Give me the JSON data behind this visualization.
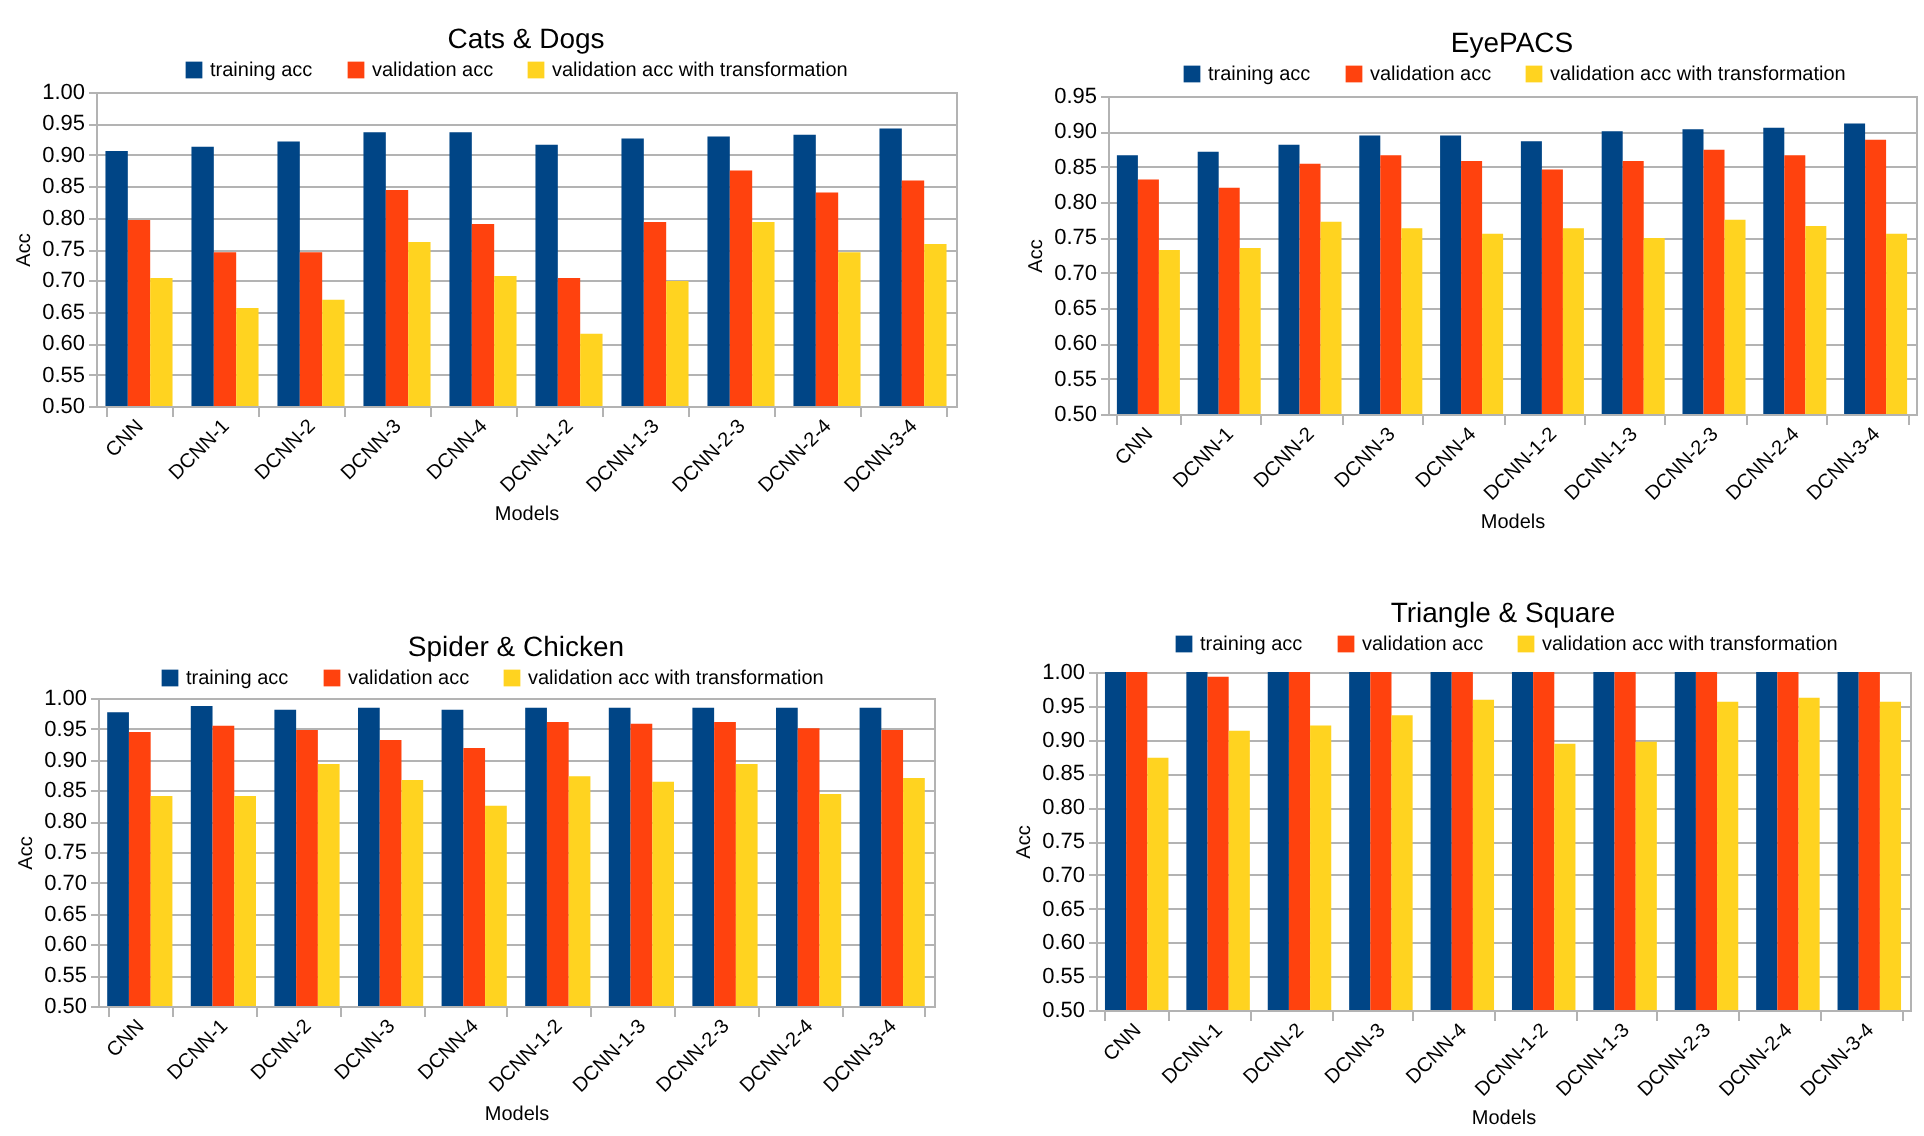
{
  "chart_data": [
    {
      "type": "bar",
      "title": "Cats & Dogs",
      "xlabel": "Models",
      "ylabel": "Acc",
      "categories": [
        "CNN",
        "DCNN-1",
        "DCNN-2",
        "DCNN-3",
        "DCNN-4",
        "DCNN-1-2",
        "DCNN-1-3",
        "DCNN-2-3",
        "DCNN-2-4",
        "DCNN-3-4"
      ],
      "series": [
        {
          "name": "training acc",
          "color": "#004586",
          "values": [
            0.906,
            0.913,
            0.921,
            0.936,
            0.936,
            0.916,
            0.926,
            0.929,
            0.932,
            0.942
          ]
        },
        {
          "name": "validation acc",
          "color": "#ff420e",
          "values": [
            0.796,
            0.745,
            0.745,
            0.844,
            0.79,
            0.704,
            0.793,
            0.875,
            0.84,
            0.859
          ]
        },
        {
          "name": "validation acc with transformation",
          "color": "#ffd320",
          "values": [
            0.704,
            0.656,
            0.669,
            0.761,
            0.707,
            0.615,
            0.699,
            0.793,
            0.745,
            0.758
          ]
        }
      ],
      "ylim": [
        0.5,
        1.0
      ],
      "yticks": [
        {
          "value": 0.5,
          "label": "0.50"
        },
        0.55,
        {
          "value": 0.6,
          "label": "0.60"
        },
        0.65,
        {
          "value": 0.7,
          "label": "0.70"
        },
        0.75,
        {
          "value": 0.8,
          "label": "0.80"
        },
        0.85,
        {
          "value": 0.9,
          "label": "0.90"
        },
        0.95,
        {
          "value": 1.0,
          "label": "1.00"
        }
      ],
      "grid": "y",
      "legend": "top"
    },
    {
      "type": "bar",
      "title": "EyePACS",
      "xlabel": "Models",
      "ylabel": "Acc",
      "categories": [
        "CNN",
        "DCNN-1",
        "DCNN-2",
        "DCNN-3",
        "DCNN-4",
        "DCNN-1-2",
        "DCNN-1-3",
        "DCNN-2-3",
        "DCNN-2-4",
        "DCNN-3-4"
      ],
      "series": [
        {
          "name": "training acc",
          "color": "#004586",
          "values": [
            0.866,
            0.871,
            0.881,
            0.894,
            0.894,
            0.886,
            0.9,
            0.903,
            0.905,
            0.911
          ]
        },
        {
          "name": "validation acc",
          "color": "#ff420e",
          "values": [
            0.832,
            0.82,
            0.854,
            0.866,
            0.858,
            0.846,
            0.858,
            0.874,
            0.866,
            0.888
          ]
        },
        {
          "name": "validation acc with transformation",
          "color": "#ffd320",
          "values": [
            0.732,
            0.735,
            0.772,
            0.763,
            0.755,
            0.763,
            0.749,
            0.775,
            0.766,
            0.755
          ]
        }
      ],
      "ylim": [
        0.5,
        0.95
      ],
      "yticks": [
        {
          "value": 0.5,
          "label": "0.50"
        },
        0.55,
        {
          "value": 0.6,
          "label": "0.60"
        },
        0.65,
        {
          "value": 0.7,
          "label": "0.70"
        },
        0.75,
        {
          "value": 0.8,
          "label": "0.80"
        },
        0.85,
        {
          "value": 0.9,
          "label": "0.90"
        },
        0.95
      ],
      "grid": "y",
      "legend": "top"
    },
    {
      "type": "bar",
      "title": "Spider & Chicken",
      "xlabel": "Models",
      "ylabel": "Acc",
      "categories": [
        "CNN",
        "DCNN-1",
        "DCNN-2",
        "DCNN-3",
        "DCNN-4",
        "DCNN-1-2",
        "DCNN-1-3",
        "DCNN-2-3",
        "DCNN-2-4",
        "DCNN-3-4"
      ],
      "series": [
        {
          "name": "training acc",
          "color": "#004586",
          "values": [
            0.977,
            0.987,
            0.981,
            0.984,
            0.981,
            0.984,
            0.984,
            0.984,
            0.984,
            0.984
          ]
        },
        {
          "name": "validation acc",
          "color": "#ff420e",
          "values": [
            0.945,
            0.955,
            0.948,
            0.932,
            0.919,
            0.961,
            0.958,
            0.961,
            0.951,
            0.948
          ]
        },
        {
          "name": "validation acc with transformation",
          "color": "#ffd320",
          "values": [
            0.841,
            0.841,
            0.893,
            0.867,
            0.825,
            0.873,
            0.864,
            0.893,
            0.844,
            0.87
          ]
        }
      ],
      "ylim": [
        0.5,
        1.0
      ],
      "yticks": [
        {
          "value": 0.5,
          "label": "0.50"
        },
        0.55,
        {
          "value": 0.6,
          "label": "0.60"
        },
        0.65,
        {
          "value": 0.7,
          "label": "0.70"
        },
        0.75,
        {
          "value": 0.8,
          "label": "0.80"
        },
        0.85,
        {
          "value": 0.9,
          "label": "0.90"
        },
        0.95,
        {
          "value": 1.0,
          "label": "1.00"
        }
      ],
      "grid": "y",
      "legend": "top"
    },
    {
      "type": "bar",
      "title": "Triangle & Square",
      "xlabel": "Models",
      "ylabel": "Acc",
      "categories": [
        "CNN",
        "DCNN-1",
        "DCNN-2",
        "DCNN-3",
        "DCNN-4",
        "DCNN-1-2",
        "DCNN-1-3",
        "DCNN-2-3",
        "DCNN-2-4",
        "DCNN-3-4"
      ],
      "series": [
        {
          "name": "training acc",
          "color": "#004586",
          "values": [
            1.0,
            1.0,
            1.0,
            1.0,
            1.0,
            1.0,
            1.0,
            1.0,
            1.0,
            1.0
          ]
        },
        {
          "name": "validation acc",
          "color": "#ff420e",
          "values": [
            1.0,
            0.993,
            1.0,
            1.0,
            1.0,
            1.0,
            1.0,
            1.0,
            1.0,
            1.0
          ]
        },
        {
          "name": "validation acc with transformation",
          "color": "#ffd320",
          "values": [
            0.873,
            0.913,
            0.921,
            0.936,
            0.959,
            0.894,
            0.897,
            0.956,
            0.962,
            0.956
          ]
        }
      ],
      "ylim": [
        0.5,
        1.0
      ],
      "yticks": [
        {
          "value": 0.5,
          "label": "0.50"
        },
        0.55,
        {
          "value": 0.6,
          "label": "0.60"
        },
        0.65,
        {
          "value": 0.7,
          "label": "0.70"
        },
        0.75,
        {
          "value": 0.8,
          "label": "0.80"
        },
        0.85,
        {
          "value": 0.9,
          "label": "0.90"
        },
        0.95,
        {
          "value": 1.0,
          "label": "1.00"
        }
      ],
      "grid": "y",
      "legend": "top"
    }
  ]
}
